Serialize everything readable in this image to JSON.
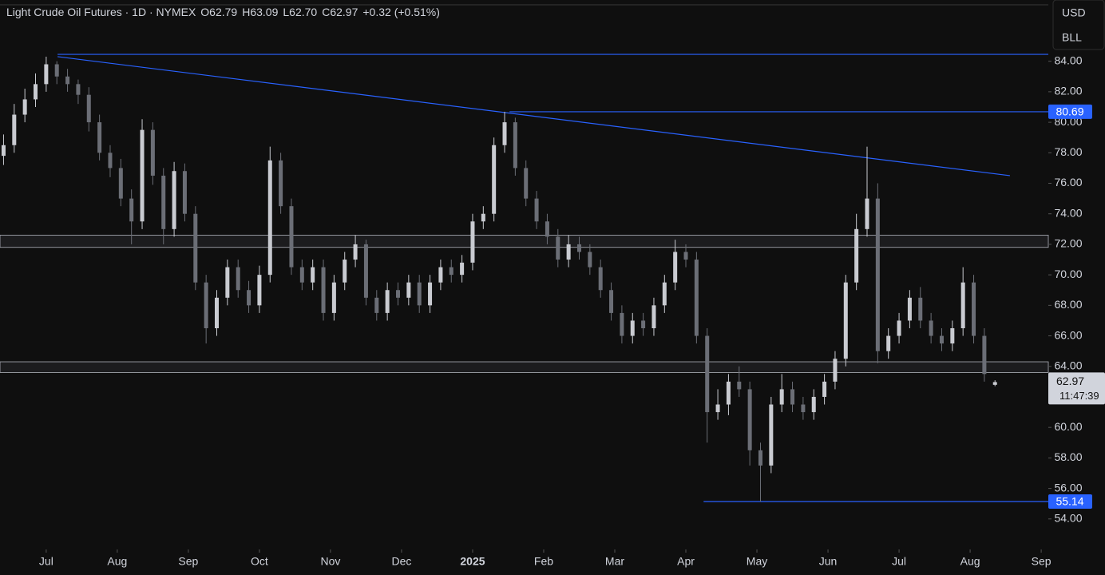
{
  "header": {
    "items": [
      "Light Crude Oil Futures · 1D · NYMEX",
      "O62.79",
      "H63.09",
      "L62.70",
      "C62.97",
      "+0.32 (+0.51%)"
    ]
  },
  "currency": [
    "USD",
    "BLL"
  ],
  "chart_data": {
    "type": "candlestick",
    "up_color": "#c9cbd1",
    "down_color": "#6b6e76",
    "line_color": "#2962ff",
    "x": [
      -0.6,
      -0.45,
      -0.3,
      -0.15,
      0,
      0.15,
      0.3,
      0.45,
      0.6,
      0.75,
      0.9,
      1.05,
      1.2,
      1.35,
      1.5,
      1.65,
      1.8,
      1.95,
      2.1,
      2.25,
      2.4,
      2.55,
      2.7,
      2.85,
      3,
      3.15,
      3.3,
      3.45,
      3.6,
      3.75,
      3.9,
      4.05,
      4.2,
      4.35,
      4.5,
      4.65,
      4.8,
      4.95,
      5.1,
      5.25,
      5.4,
      5.55,
      5.7,
      5.85,
      6,
      6.15,
      6.3,
      6.45,
      6.6,
      6.75,
      6.9,
      7.05,
      7.2,
      7.35,
      7.5,
      7.65,
      7.8,
      7.95,
      8.1,
      8.25,
      8.4,
      8.55,
      8.7,
      8.85,
      9,
      9.15,
      9.3,
      9.45,
      9.6,
      9.75,
      9.9,
      10.05,
      10.2,
      10.35,
      10.5,
      10.65,
      10.8,
      10.95,
      11.1,
      11.25,
      11.4,
      11.55,
      11.7,
      11.85,
      12,
      12.15,
      12.3,
      12.45,
      12.6,
      12.75,
      12.9,
      13.05,
      13.2,
      13.35
    ],
    "open": [
      77.8,
      78.5,
      80.5,
      81.5,
      82.5,
      83.8,
      83.0,
      82.5,
      81.8,
      80.0,
      78.0,
      77.0,
      75.0,
      73.5,
      79.5,
      76.5,
      73.0,
      76.8,
      74.0,
      69.5,
      66.5,
      68.5,
      70.5,
      69.0,
      68.0,
      70.0,
      77.5,
      74.5,
      70.5,
      69.5,
      70.5,
      67.5,
      69.5,
      71.0,
      72.0,
      68.5,
      67.5,
      69.0,
      68.5,
      69.5,
      68.0,
      69.5,
      70.5,
      70.0,
      70.8,
      73.5,
      74.0,
      78.5,
      80.0,
      77.0,
      75.0,
      73.5,
      72.5,
      71.0,
      72.0,
      71.5,
      70.5,
      69.0,
      67.5,
      66.0,
      67.0,
      66.5,
      68.0,
      69.5,
      71.5,
      71.0,
      66.0,
      61.0,
      61.5,
      63.0,
      62.5,
      58.5,
      57.5,
      61.5,
      62.5,
      61.5,
      61.0,
      62.0,
      63.0,
      64.5,
      69.5,
      73.0,
      75.0,
      65.0,
      66.0,
      67.0,
      68.5,
      67.0,
      66.0,
      65.5,
      66.5,
      69.5,
      66.0,
      62.79
    ],
    "high": [
      79.2,
      81.2,
      82.2,
      83.2,
      84.3,
      84.0,
      83.5,
      82.8,
      82.3,
      80.5,
      78.5,
      77.6,
      75.6,
      80.2,
      80.0,
      77.0,
      77.4,
      77.3,
      74.5,
      70.0,
      69.0,
      71.0,
      71.0,
      69.6,
      70.6,
      78.4,
      78.0,
      75.0,
      71.0,
      71.0,
      71.0,
      70.0,
      71.5,
      72.6,
      72.3,
      69.0,
      69.5,
      69.5,
      70.0,
      70.0,
      70.0,
      71.0,
      71.0,
      71.3,
      74.0,
      74.5,
      79.0,
      80.69,
      80.3,
      77.5,
      75.5,
      74.0,
      73.0,
      72.6,
      72.5,
      72.0,
      71.0,
      69.5,
      68.0,
      67.5,
      67.5,
      68.5,
      70.0,
      72.3,
      72.0,
      71.5,
      66.5,
      62.5,
      63.5,
      64.0,
      63.0,
      59.0,
      62.0,
      63.5,
      63.0,
      62.0,
      62.5,
      63.5,
      65.0,
      70.0,
      74.0,
      78.4,
      76.0,
      66.5,
      67.5,
      69.0,
      69.2,
      67.5,
      66.5,
      67.0,
      70.5,
      70.0,
      66.5,
      63.09
    ],
    "low": [
      77.2,
      78.0,
      80.0,
      81.0,
      82.0,
      82.5,
      82.0,
      81.2,
      79.4,
      77.5,
      76.4,
      74.5,
      72.0,
      73.0,
      75.9,
      72.0,
      72.5,
      73.5,
      69.0,
      65.5,
      66.0,
      68.0,
      68.5,
      67.5,
      67.5,
      69.5,
      74.0,
      70.0,
      69.0,
      69.0,
      67.0,
      67.0,
      69.0,
      70.5,
      68.0,
      67.0,
      67.0,
      68.0,
      68.0,
      67.5,
      67.5,
      69.0,
      69.5,
      69.5,
      70.3,
      73.0,
      73.5,
      78.0,
      76.5,
      74.5,
      73.0,
      72.0,
      70.5,
      70.5,
      71.0,
      70.0,
      68.5,
      67.0,
      65.5,
      65.5,
      66.0,
      66.0,
      67.5,
      69.0,
      70.5,
      65.5,
      59.0,
      60.5,
      60.8,
      62.0,
      57.5,
      55.14,
      57.0,
      61.0,
      61.0,
      60.5,
      60.5,
      61.5,
      62.5,
      64.0,
      69.0,
      72.5,
      64.2,
      64.5,
      65.5,
      66.5,
      66.5,
      65.5,
      65.0,
      65.0,
      66.0,
      65.5,
      63.0,
      62.7
    ],
    "close": [
      78.5,
      80.5,
      81.5,
      82.5,
      83.8,
      83.0,
      82.5,
      81.8,
      80.0,
      78.0,
      77.0,
      75.0,
      73.5,
      79.5,
      76.5,
      73.0,
      76.8,
      74.0,
      69.5,
      66.5,
      68.5,
      70.5,
      69.0,
      68.0,
      70.0,
      77.5,
      74.5,
      70.5,
      69.5,
      70.5,
      67.5,
      69.5,
      71.0,
      72.0,
      68.5,
      67.5,
      69.0,
      68.5,
      69.5,
      68.0,
      69.5,
      70.5,
      70.0,
      70.8,
      73.5,
      74.0,
      78.5,
      80.0,
      77.0,
      75.0,
      73.5,
      72.5,
      71.0,
      72.0,
      71.5,
      70.5,
      69.0,
      67.5,
      66.0,
      67.0,
      66.5,
      68.0,
      69.5,
      71.5,
      71.0,
      66.0,
      61.0,
      61.5,
      63.0,
      62.5,
      58.5,
      57.5,
      61.5,
      62.5,
      61.5,
      61.0,
      62.0,
      63.0,
      64.5,
      69.5,
      73.0,
      75.0,
      65.0,
      66.0,
      67.0,
      68.5,
      67.0,
      66.0,
      65.5,
      66.5,
      69.5,
      66.0,
      63.5,
      62.97
    ],
    "countdown": "11:47:39",
    "xlim": [
      -0.65,
      14.1
    ],
    "ylim": [
      52.0,
      87.7
    ],
    "yticks": [
      {
        "value": 54,
        "label": "54.00"
      },
      {
        "value": 56,
        "label": "56.00"
      },
      {
        "value": 58,
        "label": "58.00"
      },
      {
        "value": 60,
        "label": "60.00"
      },
      {
        "value": 62,
        "label": "62.00"
      },
      {
        "value": 64,
        "label": "64.00"
      },
      {
        "value": 66,
        "label": "66.00"
      },
      {
        "value": 68,
        "label": "68.00"
      },
      {
        "value": 70,
        "label": "70.00"
      },
      {
        "value": 72,
        "label": "72.00"
      },
      {
        "value": 74,
        "label": "74.00"
      },
      {
        "value": 76,
        "label": "76.00"
      },
      {
        "value": 78,
        "label": "78.00"
      },
      {
        "value": 80,
        "label": "80.00"
      },
      {
        "value": 82,
        "label": "82.00"
      },
      {
        "value": 84,
        "label": "84.00"
      }
    ],
    "xticks": [
      {
        "value": 0,
        "label": "Jul"
      },
      {
        "value": 1,
        "label": "Aug"
      },
      {
        "value": 2,
        "label": "Sep"
      },
      {
        "value": 3,
        "label": "Oct"
      },
      {
        "value": 4,
        "label": "Nov"
      },
      {
        "value": 5,
        "label": "Dec"
      },
      {
        "value": 6,
        "label": "2025",
        "bold": true
      },
      {
        "value": 7,
        "label": "Feb"
      },
      {
        "value": 8,
        "label": "Mar"
      },
      {
        "value": 9,
        "label": "Apr"
      },
      {
        "value": 10,
        "label": "May"
      },
      {
        "value": 11,
        "label": "Jun"
      },
      {
        "value": 12,
        "label": "Jul"
      },
      {
        "value": 13,
        "label": "Aug"
      },
      {
        "value": 14,
        "label": "Sep"
      }
    ],
    "trendline": {
      "x": [
        0.16,
        13.56
      ],
      "y": [
        84.3,
        76.5
      ]
    },
    "hlines": [
      {
        "value": 84.45,
        "x_start": 0.16,
        "labeled": false
      },
      {
        "value": 80.69,
        "x_start": 6.52,
        "labeled": true
      },
      {
        "value": 55.14,
        "x_start": 9.25,
        "labeled": true
      }
    ],
    "zones": [
      {
        "low": 71.8,
        "high": 72.6
      },
      {
        "low": 63.6,
        "high": 64.3
      }
    ]
  }
}
